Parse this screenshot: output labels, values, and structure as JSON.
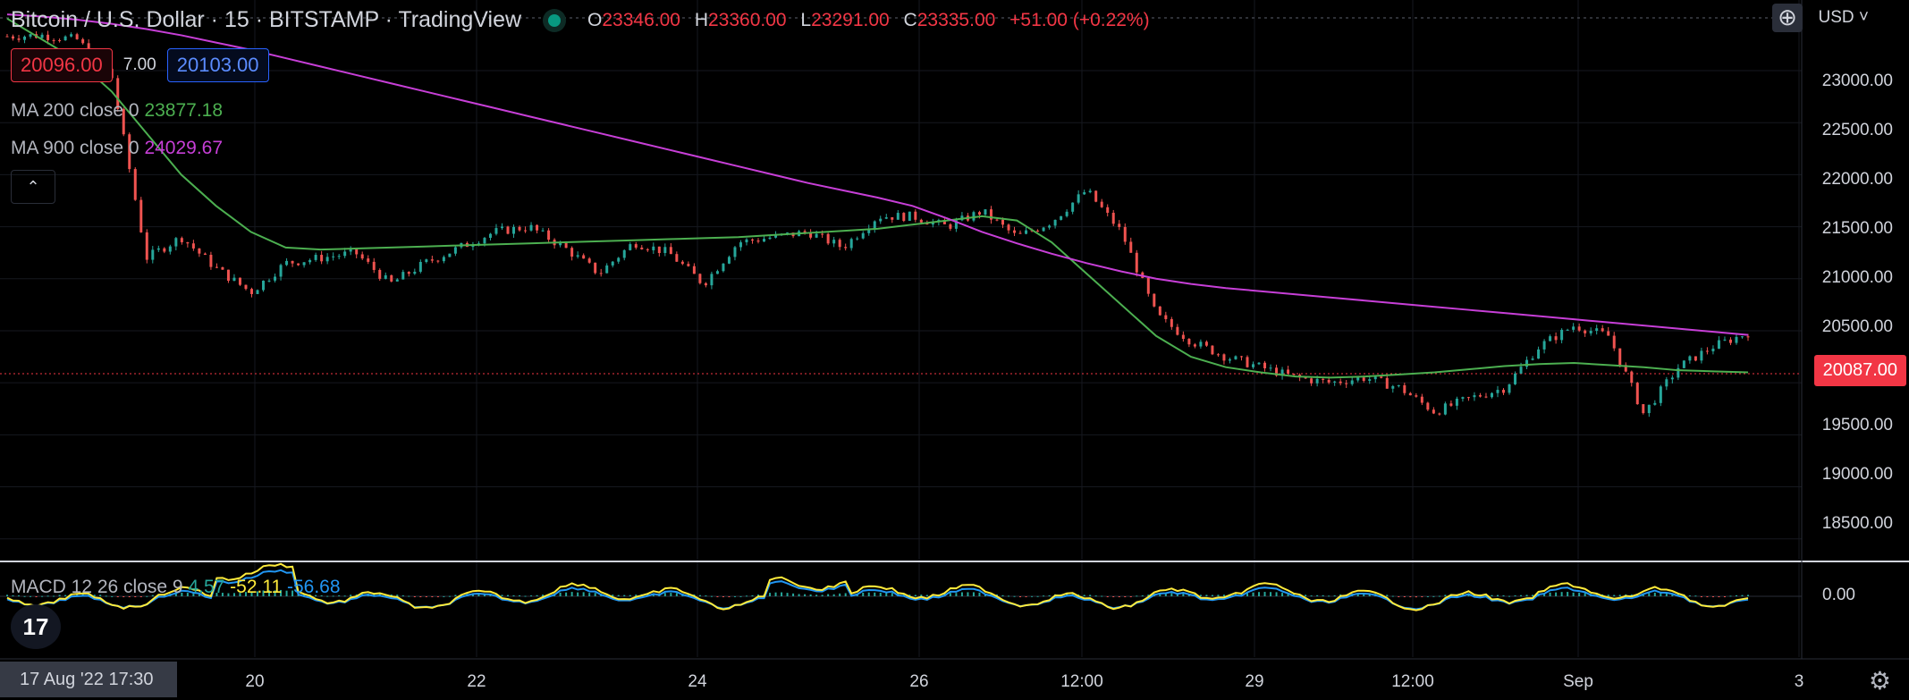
{
  "header": {
    "title": "Bitcoin / U.S. Dollar · 15 · BITSTAMP · TradingView",
    "ohlc": [
      {
        "key": "O",
        "value": "23346.00"
      },
      {
        "key": "H",
        "value": "23360.00"
      },
      {
        "key": "L",
        "value": "23291.00"
      },
      {
        "key": "C",
        "value": "23335.00"
      }
    ],
    "change": "+51.00 (+0.22%)"
  },
  "quote": {
    "bid": "20096.00",
    "spread": "7.00",
    "ask": "20103.00"
  },
  "indicators": {
    "ma200": {
      "label": "MA 200 close 0",
      "value": "23877.18",
      "color": "#4caf50"
    },
    "ma900": {
      "label": "MA 900 close 0",
      "value": "24029.67",
      "color": "#c73fd7"
    },
    "collapse_icon": "chevron-up-icon"
  },
  "macd": {
    "label": "MACD 12 26 close 9",
    "hist": "4.57",
    "macd": "-52.11",
    "signal": "-56.68",
    "colors": {
      "hist": "#26a69a",
      "macd": "#ffeb3b",
      "signal": "#2196f3"
    },
    "axis_label": "0.00"
  },
  "price_axis": {
    "currency": "USD",
    "current_price": "20087.00",
    "labels": [
      "23000.00",
      "22500.00",
      "22000.00",
      "21500.00",
      "21000.00",
      "20500.00",
      "19500.00",
      "19000.00",
      "18500.00"
    ]
  },
  "time_axis": {
    "labels": [
      "20",
      "22",
      "24",
      "26",
      "12:00",
      "29",
      "12:00",
      "Sep",
      "3"
    ],
    "cursor_date": "17 Aug '22   17:30"
  },
  "colors": {
    "up": "#26a69a",
    "down": "#ef5350",
    "background": "#000000",
    "current_price": "#f23645"
  },
  "chart_data": {
    "type": "line",
    "title": "Bitcoin / U.S. Dollar · 15 · BITSTAMP",
    "xlabel": "",
    "ylabel": "",
    "ylim": [
      18300,
      23550
    ],
    "x": [
      0,
      2,
      4,
      6,
      8,
      10,
      12,
      14,
      16,
      18,
      20,
      22,
      24,
      26,
      28,
      30,
      32,
      34,
      36,
      38,
      40,
      42,
      44,
      46,
      48,
      50,
      52,
      54,
      56,
      58,
      60,
      62,
      64,
      66,
      68,
      70,
      72,
      74,
      76,
      78,
      80,
      82,
      84,
      86,
      88,
      90,
      92,
      94,
      96,
      98,
      100
    ],
    "series": [
      {
        "name": "price",
        "values": [
          23330,
          23340,
          23300,
          22950,
          21200,
          21400,
          21100,
          20870,
          21150,
          21200,
          21250,
          20950,
          21150,
          21300,
          21450,
          21500,
          21300,
          21050,
          21350,
          21250,
          20950,
          21350,
          21400,
          21450,
          21300,
          21600,
          21600,
          21500,
          21650,
          21400,
          21550,
          21850,
          21450,
          20650,
          20400,
          20250,
          20150,
          20050,
          20000,
          20050,
          19950,
          19720,
          19850,
          19950,
          20350,
          20550,
          20450,
          19700,
          20150,
          20350,
          20480
        ]
      },
      {
        "name": "MA 200 close 0",
        "values": [
          23500,
          23300,
          23100,
          22800,
          22400,
          22000,
          21700,
          21450,
          21300,
          21280,
          21290,
          21300,
          21310,
          21320,
          21330,
          21340,
          21350,
          21360,
          21370,
          21380,
          21390,
          21400,
          21420,
          21440,
          21460,
          21480,
          21520,
          21560,
          21600,
          21560,
          21350,
          21050,
          20750,
          20450,
          20250,
          20150,
          20100,
          20060,
          20050,
          20060,
          20080,
          20100,
          20130,
          20160,
          20180,
          20190,
          20170,
          20150,
          20120,
          20110,
          20100
        ]
      },
      {
        "name": "MA 900 close 0",
        "values": [
          23540,
          23520,
          23490,
          23450,
          23400,
          23340,
          23270,
          23200,
          23120,
          23040,
          22960,
          22880,
          22800,
          22720,
          22640,
          22560,
          22480,
          22400,
          22320,
          22240,
          22160,
          22080,
          22000,
          21920,
          21850,
          21780,
          21700,
          21580,
          21450,
          21340,
          21240,
          21150,
          21070,
          21000,
          20950,
          20910,
          20880,
          20850,
          20820,
          20790,
          20760,
          20730,
          20700,
          20670,
          20640,
          20610,
          20580,
          20550,
          20520,
          20490,
          20460
        ]
      }
    ]
  }
}
